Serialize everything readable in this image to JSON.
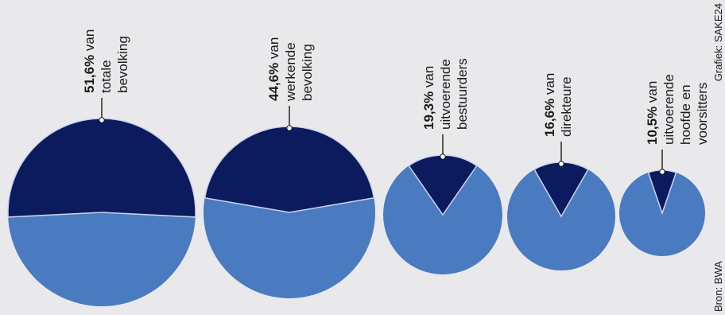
{
  "chart_data": {
    "type": "pie",
    "orientation": "rotated 90° counter-clockwise",
    "charts": [
      {
        "id": "totale-bevolking",
        "value": 51.6,
        "value_label": "51,6%",
        "label_lines": [
          "51,6% van",
          "totale",
          "bevolking"
        ]
      },
      {
        "id": "werkende-bevolking",
        "value": 44.6,
        "value_label": "44,6%",
        "label_lines": [
          "44,6% van",
          "werkende",
          "bevolking"
        ]
      },
      {
        "id": "uitvoerende-bestuurders",
        "value": 19.3,
        "value_label": "19,3%",
        "label_lines": [
          "19,3% van",
          "uitvoerende",
          "bestuurders"
        ]
      },
      {
        "id": "direkteure",
        "value": 16.6,
        "value_label": "16,6%",
        "label_lines": [
          "16,6% van",
          "direkteure"
        ]
      },
      {
        "id": "uitvoerende-hoofde-en-voorsitters",
        "value": 10.5,
        "value_label": "10,5%",
        "label_lines": [
          "10,5% van",
          "uitvoerende",
          "hoofde en",
          "voorsitters"
        ]
      }
    ],
    "colors": {
      "highlight": "#0c1a5e",
      "remainder": "#4a7bc0",
      "background": "#e9e9ec",
      "text": "#1a1a1a"
    }
  },
  "source": "Bron: BWA",
  "credit": "Grafiek: SAKE24"
}
